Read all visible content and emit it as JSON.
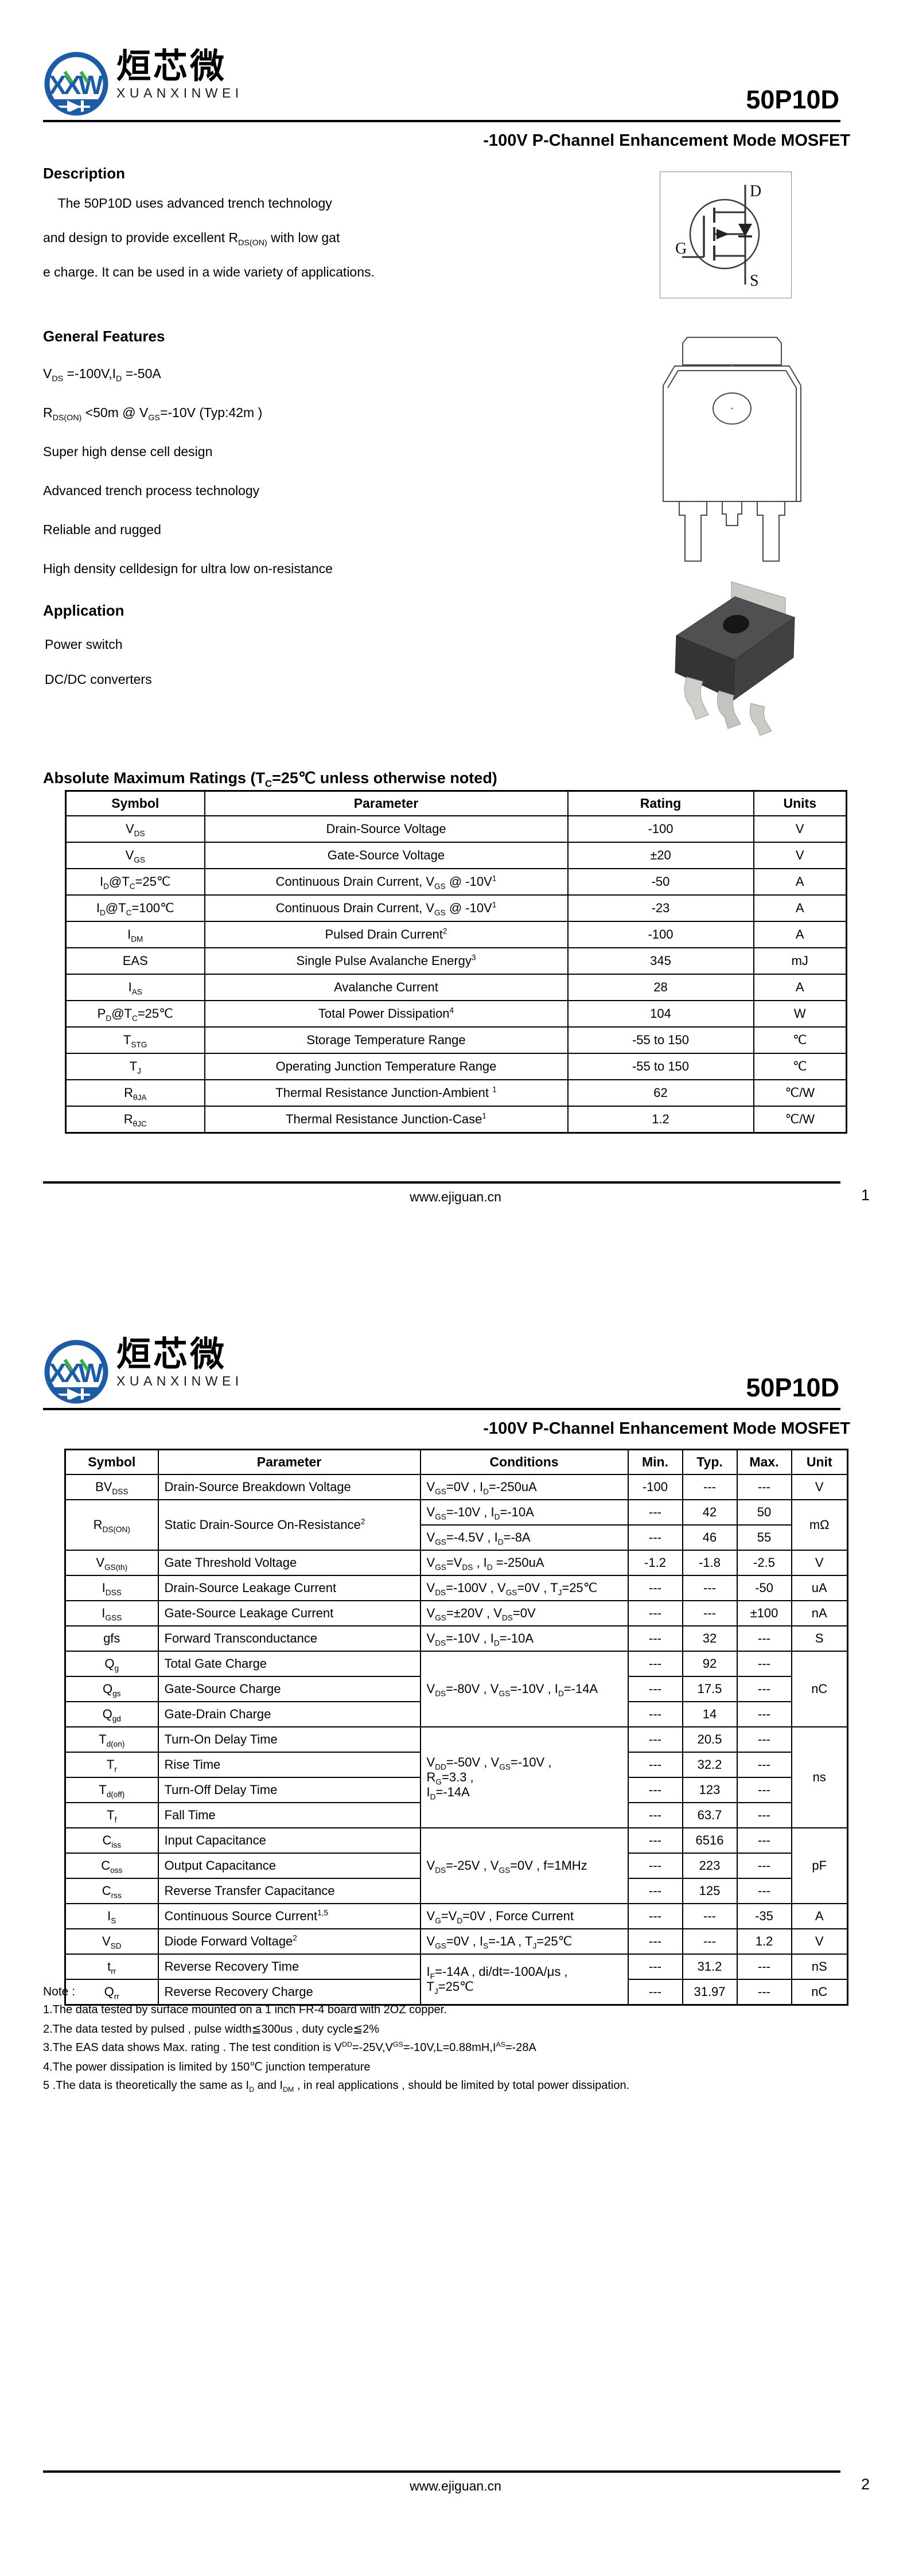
{
  "brand": {
    "logo_cn": "烜芯微",
    "logo_en": "XUANXINWEI",
    "logo_acronym": "XXW"
  },
  "footer_url": "www.ejiguan.cn",
  "page1": {
    "part_number": "50P10D",
    "subtitle": "-100V P-Channel Enhancement Mode MOSFET",
    "description": {
      "heading": "Description",
      "lines": [
        "    The 50P10D uses advanced trench technology",
        "and design to provide excellent R~DS(ON)~ with low gat",
        "e charge. It can be used in a wide variety of applications."
      ]
    },
    "general_features": {
      "heading": "General Features",
      "items": [
        "V~DS~ =-100V,I~D~ =-50A",
        "R~DS(ON)~ <50m @ V~GS~=-10V  (Typ:42m )",
        "Super high dense cell design",
        "Advanced trench process technology",
        "Reliable and rugged",
        "High density celldesign for ultra low on-resistance"
      ]
    },
    "application": {
      "heading": "Application",
      "items": [
        "Power switch",
        "DC/DC converters"
      ]
    },
    "mosfet_symbol": {
      "drain": "D",
      "gate": "G",
      "source": "S"
    },
    "abs_max_table": {
      "heading": "Absolute Maximum Ratings (T~C~=25℃ unless otherwise noted)",
      "columns": [
        "Symbol",
        "Parameter",
        "Rating",
        "Units"
      ],
      "rows": [
        [
          "V~DS~",
          "Drain-Source Voltage",
          "-100",
          "V"
        ],
        [
          "V~GS~",
          "Gate-Source Voltage",
          "±20",
          "V"
        ],
        [
          "I~D~@T~C~=25℃",
          "Continuous Drain Current, V~GS~ @ -10V^1^",
          "-50",
          "A"
        ],
        [
          "I~D~@T~C~=100℃",
          "Continuous Drain Current, V~GS~ @ -10V^1^",
          "-23",
          "A"
        ],
        [
          "I~DM~",
          "Pulsed Drain Current^2^",
          "-100",
          "A"
        ],
        [
          "EAS",
          "Single Pulse Avalanche Energy^3^",
          "345",
          "mJ"
        ],
        [
          "I~AS~",
          "Avalanche Current",
          "28",
          "A"
        ],
        [
          "P~D~@T~C~=25℃",
          "Total Power Dissipation^4^",
          "104",
          "W"
        ],
        [
          "T~STG~",
          "Storage Temperature Range",
          "-55 to 150",
          "℃"
        ],
        [
          "T~J~",
          "Operating Junction Temperature Range",
          "-55 to 150",
          "℃"
        ],
        [
          "R~θJA~",
          "Thermal Resistance Junction-Ambient ^1^",
          "62",
          "℃/W"
        ],
        [
          "R~θJC~",
          "Thermal Resistance Junction-Case^1^",
          "1.2",
          "℃/W"
        ]
      ]
    },
    "page_number": "1"
  },
  "page2": {
    "part_number": "50P10D",
    "subtitle": "-100V P-Channel Enhancement Mode MOSFET",
    "elec_table": {
      "columns": [
        "Symbol",
        "Parameter",
        "Conditions",
        "Min.",
        "Typ.",
        "Max.",
        "Unit"
      ],
      "rows": [
        [
          {
            "t": "BV~DSS~"
          },
          {
            "t": "Drain-Source Breakdown Voltage",
            "cls": "l"
          },
          {
            "t": "V~GS~=0V , I~D~=-250uA",
            "cls": "l"
          },
          {
            "t": "-100"
          },
          {
            "t": "---"
          },
          {
            "t": "---"
          },
          {
            "t": "V"
          }
        ],
        [
          {
            "t": "R~DS(ON)~",
            "rs": 2
          },
          {
            "t": "Static Drain-Source On-Resistance^2^",
            "rs": 2,
            "cls": "l"
          },
          {
            "t": "V~GS~=-10V , I~D~=-10A",
            "cls": "l"
          },
          {
            "t": "---"
          },
          {
            "t": "42"
          },
          {
            "t": "50"
          },
          {
            "t": "mΩ",
            "rs": 2
          }
        ],
        [
          {
            "t": "V~GS~=-4.5V , I~D~=-8A",
            "cls": "l"
          },
          {
            "t": "---"
          },
          {
            "t": "46"
          },
          {
            "t": "55"
          }
        ],
        [
          {
            "t": "V~GS(th)~"
          },
          {
            "t": "Gate Threshold Voltage",
            "cls": "l"
          },
          {
            "t": "V~GS~=V~DS~ , I~D~ =-250uA",
            "cls": "l"
          },
          {
            "t": "-1.2"
          },
          {
            "t": "-1.8"
          },
          {
            "t": "-2.5"
          },
          {
            "t": "V"
          }
        ],
        [
          {
            "t": "I~DSS~"
          },
          {
            "t": "Drain-Source Leakage Current",
            "cls": "l"
          },
          {
            "t": "V~DS~=-100V , V~GS~=0V , T~J~=25℃",
            "cls": "l"
          },
          {
            "t": "---"
          },
          {
            "t": "---"
          },
          {
            "t": "-50"
          },
          {
            "t": "uA"
          }
        ],
        [
          {
            "t": "I~GSS~"
          },
          {
            "t": "Gate-Source Leakage Current",
            "cls": "l"
          },
          {
            "t": "V~GS~=±20V , V~DS~=0V",
            "cls": "l"
          },
          {
            "t": "---"
          },
          {
            "t": "---"
          },
          {
            "t": "±100"
          },
          {
            "t": "nA"
          }
        ],
        [
          {
            "t": "gfs"
          },
          {
            "t": "Forward Transconductance",
            "cls": "l"
          },
          {
            "t": "V~DS~=-10V , I~D~=-10A",
            "cls": "l"
          },
          {
            "t": "---"
          },
          {
            "t": "32"
          },
          {
            "t": "---"
          },
          {
            "t": "S"
          }
        ],
        [
          {
            "t": "Q~g~"
          },
          {
            "t": "Total Gate Charge",
            "cls": "l"
          },
          {
            "t": "V~DS~=-80V , V~GS~=-10V , I~D~=-14A",
            "rs": 3,
            "cls": "l"
          },
          {
            "t": "---"
          },
          {
            "t": "92"
          },
          {
            "t": "---"
          },
          {
            "t": "nC",
            "rs": 3
          }
        ],
        [
          {
            "t": "Q~gs~"
          },
          {
            "t": "Gate-Source Charge",
            "cls": "l"
          },
          {
            "t": "---"
          },
          {
            "t": "17.5"
          },
          {
            "t": "---"
          }
        ],
        [
          {
            "t": "Q~gd~"
          },
          {
            "t": "Gate-Drain Charge",
            "cls": "l"
          },
          {
            "t": "---"
          },
          {
            "t": "14"
          },
          {
            "t": "---"
          }
        ],
        [
          {
            "t": "T~d(on)~"
          },
          {
            "t": "Turn-On Delay Time",
            "cls": "l"
          },
          {
            "t": "V~DD~=-50V ,  V~GS~=-10V ,\nR~G~=3.3 ,\nI~D~=-14A",
            "rs": 4,
            "cls": "l"
          },
          {
            "t": "---"
          },
          {
            "t": "20.5"
          },
          {
            "t": "---"
          },
          {
            "t": "ns",
            "rs": 4
          }
        ],
        [
          {
            "t": "T~r~"
          },
          {
            "t": "Rise Time",
            "cls": "l"
          },
          {
            "t": "---"
          },
          {
            "t": "32.2"
          },
          {
            "t": "---"
          }
        ],
        [
          {
            "t": "T~d(off)~"
          },
          {
            "t": "Turn-Off Delay Time",
            "cls": "l"
          },
          {
            "t": "---"
          },
          {
            "t": "123"
          },
          {
            "t": "---"
          }
        ],
        [
          {
            "t": "T~f~"
          },
          {
            "t": "Fall Time",
            "cls": "l"
          },
          {
            "t": "---"
          },
          {
            "t": "63.7"
          },
          {
            "t": "---"
          }
        ],
        [
          {
            "t": "C~iss~"
          },
          {
            "t": "Input Capacitance",
            "cls": "l"
          },
          {
            "t": "V~DS~=-25V , V~GS~=0V , f=1MHz",
            "rs": 3,
            "cls": "l"
          },
          {
            "t": "---"
          },
          {
            "t": "6516"
          },
          {
            "t": "---"
          },
          {
            "t": "pF",
            "rs": 3
          }
        ],
        [
          {
            "t": "C~oss~"
          },
          {
            "t": "Output Capacitance",
            "cls": "l"
          },
          {
            "t": "---"
          },
          {
            "t": "223"
          },
          {
            "t": "---"
          }
        ],
        [
          {
            "t": "C~rss~"
          },
          {
            "t": "Reverse Transfer Capacitance",
            "cls": "l"
          },
          {
            "t": "---"
          },
          {
            "t": "125"
          },
          {
            "t": "---"
          }
        ],
        [
          {
            "t": "I~S~"
          },
          {
            "t": "Continuous Source Current^1,5^",
            "cls": "l"
          },
          {
            "t": "V~G~=V~D~=0V , Force Current",
            "cls": "l"
          },
          {
            "t": "---"
          },
          {
            "t": "---"
          },
          {
            "t": "-35"
          },
          {
            "t": "A"
          }
        ],
        [
          {
            "t": "V~SD~"
          },
          {
            "t": "Diode Forward Voltage^2^",
            "cls": "l"
          },
          {
            "t": "V~GS~=0V , I~S~=-1A , T~J~=25℃",
            "cls": "l"
          },
          {
            "t": "---"
          },
          {
            "t": "---"
          },
          {
            "t": "1.2"
          },
          {
            "t": "V"
          }
        ],
        [
          {
            "t": "t~rr~"
          },
          {
            "t": "Reverse Recovery Time",
            "cls": "l"
          },
          {
            "t": "I~F~=-14A , di/dt=-100A/μs ,\nT~J~=25℃",
            "rs": 2,
            "cls": "l"
          },
          {
            "t": "---"
          },
          {
            "t": "31.2"
          },
          {
            "t": "---"
          },
          {
            "t": "nS"
          }
        ],
        [
          {
            "t": "Q~rr~"
          },
          {
            "t": "Reverse Recovery Charge",
            "cls": "l"
          },
          {
            "t": "---"
          },
          {
            "t": "31.97"
          },
          {
            "t": "---"
          },
          {
            "t": "nC"
          }
        ]
      ]
    },
    "notes": {
      "heading": "Note :",
      "items": [
        "1.The data tested by surface mounted on a 1 inch FR-4 board with 2OZ copper.",
        "2.The data tested by pulsed , pulse width≦300us , duty cycle≦2%",
        "3.The EAS data shows Max. rating . The test condition is V^DD^=-25V,V^GS^=-10V,L=0.88mH,I^AS^=-28A",
        "4.The power dissipation is limited by 150℃ junction temperature",
        "5 .The data is theoretically the same as I~D~ and I~DM~ , in real applications , should be limited by total power dissipation."
      ]
    },
    "page_number": "2"
  }
}
